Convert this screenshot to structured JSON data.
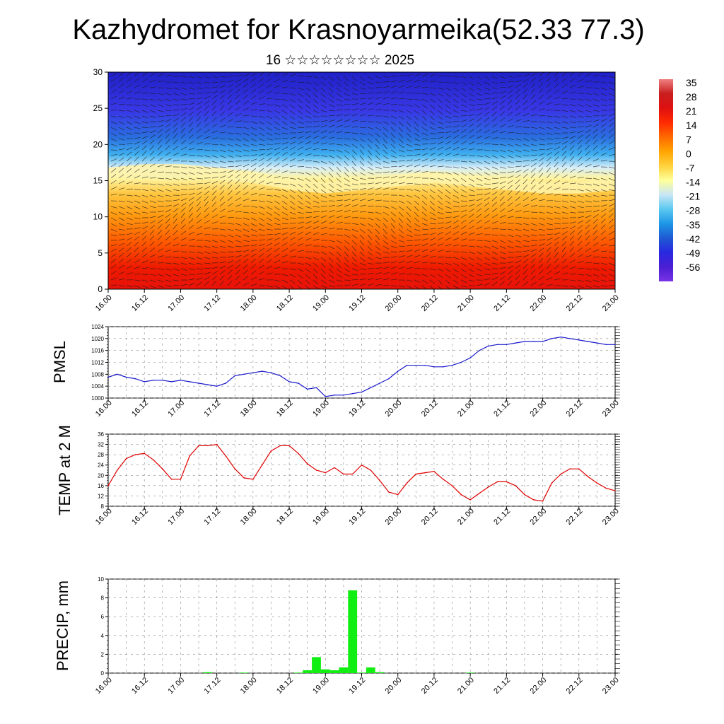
{
  "title": "Kazhydromet for Krasnoyarmeika(52.33 77.3)",
  "subtitle": "16 ☆☆☆☆☆☆☆☆ 2025",
  "time_ticks": [
    "16.00",
    "16.12",
    "17.00",
    "17.12",
    "18.00",
    "18.12",
    "19.00",
    "19.12",
    "20.00",
    "20.12",
    "21.00",
    "21.12",
    "22.00",
    "22.12",
    "23.00"
  ],
  "colorbar": {
    "labels": [
      "35",
      "28",
      "21",
      "14",
      "7",
      "0",
      "-7",
      "-14",
      "-21",
      "-28",
      "-35",
      "-42",
      "-49",
      "-56"
    ]
  },
  "chart_data": [
    {
      "type": "heatmap",
      "title": "Kazhydromet for Krasnoyarmeika(52.33 77.3)",
      "subtitle": "16 ☆☆☆☆☆☆☆☆ 2025",
      "xlabel": "",
      "ylabel": "",
      "ylim": [
        0,
        30
      ],
      "y_ticks": [
        0,
        5,
        10,
        15,
        20,
        25,
        30
      ],
      "colorbar_range": [
        -56,
        35
      ],
      "isotherm_zero_level": [
        16,
        16.5,
        16.5,
        16,
        15.5,
        14.5,
        14,
        14.5,
        15,
        15.5,
        15,
        14.5,
        14,
        14,
        14.5
      ],
      "overlay": "wind barbs"
    },
    {
      "type": "line",
      "xlabel": "",
      "ylabel": "PMSL",
      "ylim": [
        1000,
        1024
      ],
      "y_ticks": [
        1000,
        1004,
        1008,
        1012,
        1016,
        1020,
        1024
      ],
      "color": "#1a1acc",
      "x": [
        0,
        3,
        6,
        9,
        12,
        15,
        18,
        21,
        24,
        27,
        30,
        33,
        36,
        39,
        42,
        45,
        48,
        51,
        54,
        57,
        60,
        63,
        66,
        69,
        72,
        75,
        78,
        81,
        84,
        87,
        90,
        93,
        96,
        99,
        102,
        105,
        108,
        111,
        114,
        117,
        120,
        123,
        126,
        129,
        132,
        135,
        138,
        141,
        144,
        147,
        150,
        153,
        156,
        159,
        162,
        165,
        168
      ],
      "values": [
        1007,
        1008,
        1007,
        1006.5,
        1005.5,
        1006,
        1006,
        1005.5,
        1006,
        1005.5,
        1005,
        1004.5,
        1004,
        1005,
        1007.5,
        1008,
        1008.5,
        1009,
        1008.5,
        1007.5,
        1005.5,
        1005,
        1003,
        1003.5,
        1000.5,
        1001,
        1001,
        1001.5,
        1002,
        1003.5,
        1005,
        1006.5,
        1009,
        1011,
        1011,
        1011,
        1010.5,
        1010.5,
        1011,
        1012,
        1013.5,
        1016,
        1017.5,
        1018,
        1018,
        1018.5,
        1019,
        1019,
        1019,
        1020,
        1020.5,
        1020,
        1019.5,
        1019,
        1018.5,
        1018,
        1018
      ]
    },
    {
      "type": "line",
      "xlabel": "",
      "ylabel": "TEMP at 2 M",
      "ylim": [
        8,
        36
      ],
      "y_ticks": [
        8,
        12,
        16,
        20,
        24,
        28,
        32,
        36
      ],
      "color": "#e00000",
      "x": [
        0,
        3,
        6,
        9,
        12,
        15,
        18,
        21,
        24,
        27,
        30,
        33,
        36,
        39,
        42,
        45,
        48,
        51,
        54,
        57,
        60,
        63,
        66,
        69,
        72,
        75,
        78,
        81,
        84,
        87,
        90,
        93,
        96,
        99,
        102,
        105,
        108,
        111,
        114,
        117,
        120,
        123,
        126,
        129,
        132,
        135,
        138,
        141,
        144,
        147,
        150,
        153,
        156,
        159,
        162,
        165,
        168
      ],
      "values": [
        16,
        22,
        26.5,
        28,
        28.5,
        26,
        22.5,
        18.5,
        18.5,
        27.5,
        31.5,
        31.5,
        32,
        27.5,
        22.5,
        19,
        18.5,
        24,
        29.5,
        31.5,
        31.5,
        28.5,
        24.5,
        22,
        21,
        23,
        20.5,
        20.5,
        24,
        22,
        18,
        13.5,
        12.5,
        17,
        20.5,
        21,
        21.5,
        18.5,
        16,
        12.5,
        10.5,
        13,
        15.5,
        17.5,
        17.5,
        16,
        12.5,
        10.5,
        10,
        17,
        20.5,
        22.5,
        22.5,
        19.5,
        17,
        15,
        14
      ]
    },
    {
      "type": "bar",
      "xlabel": "",
      "ylabel": "PRECIP, mm",
      "ylim": [
        0,
        10
      ],
      "y_ticks": [
        0,
        2,
        4,
        6,
        8,
        10
      ],
      "color": "#11ee11",
      "x": [
        33,
        45,
        63,
        66,
        69,
        72,
        75,
        78,
        81,
        84,
        87,
        90,
        120
      ],
      "values": [
        0.1,
        0.05,
        0.05,
        0.3,
        1.7,
        0.4,
        0.3,
        0.6,
        8.8,
        0.05,
        0.6,
        0.1,
        0.05
      ]
    }
  ]
}
